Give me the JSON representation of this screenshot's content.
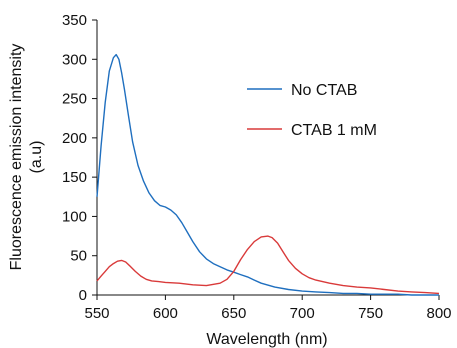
{
  "chart_data": {
    "type": "line",
    "xlabel": "Wavelength (nm)",
    "ylabel_lines": [
      "Fluorescence emission intensity",
      "(a.u)"
    ],
    "xlim": [
      550,
      800
    ],
    "ylim": [
      0,
      350
    ],
    "x_ticks": [
      "550",
      "600",
      "650",
      "700",
      "750",
      "800"
    ],
    "y_ticks": [
      "0",
      "50",
      "100",
      "150",
      "200",
      "250",
      "300",
      "350"
    ],
    "grid": false,
    "legend_position": "upper-right",
    "series": [
      {
        "name": "No CTAB",
        "color": "#1f6fbf",
        "x": [
          550,
          553,
          556,
          559,
          562,
          564,
          566,
          568,
          570,
          573,
          576,
          580,
          584,
          588,
          592,
          596,
          600,
          604,
          608,
          612,
          616,
          620,
          625,
          630,
          635,
          640,
          645,
          650,
          655,
          660,
          665,
          670,
          680,
          690,
          700,
          710,
          720,
          730,
          740,
          750,
          760,
          770,
          780,
          790,
          800
        ],
        "y": [
          125,
          190,
          245,
          285,
          302,
          306,
          300,
          283,
          262,
          228,
          195,
          165,
          145,
          130,
          120,
          114,
          112,
          108,
          102,
          92,
          80,
          68,
          55,
          46,
          40,
          36,
          32,
          29,
          26,
          23,
          19,
          15,
          10,
          7,
          5,
          4,
          3,
          2,
          2,
          1,
          1,
          1,
          0,
          0,
          0
        ]
      },
      {
        "name": "CTAB 1 mM",
        "color": "#d93a3a",
        "x": [
          550,
          553,
          556,
          559,
          562,
          565,
          568,
          571,
          574,
          578,
          582,
          586,
          590,
          595,
          600,
          610,
          620,
          630,
          640,
          645,
          650,
          655,
          660,
          665,
          670,
          675,
          678,
          682,
          686,
          690,
          695,
          700,
          705,
          710,
          720,
          730,
          740,
          750,
          760,
          770,
          780,
          790,
          800
        ],
        "y": [
          18,
          24,
          30,
          36,
          40,
          43,
          44,
          42,
          37,
          30,
          24,
          20,
          18,
          17,
          16,
          15,
          13,
          12,
          15,
          20,
          30,
          45,
          58,
          68,
          74,
          75,
          73,
          66,
          55,
          44,
          34,
          27,
          22,
          19,
          15,
          12,
          10,
          9,
          7,
          5,
          4,
          3,
          2
        ]
      }
    ]
  }
}
